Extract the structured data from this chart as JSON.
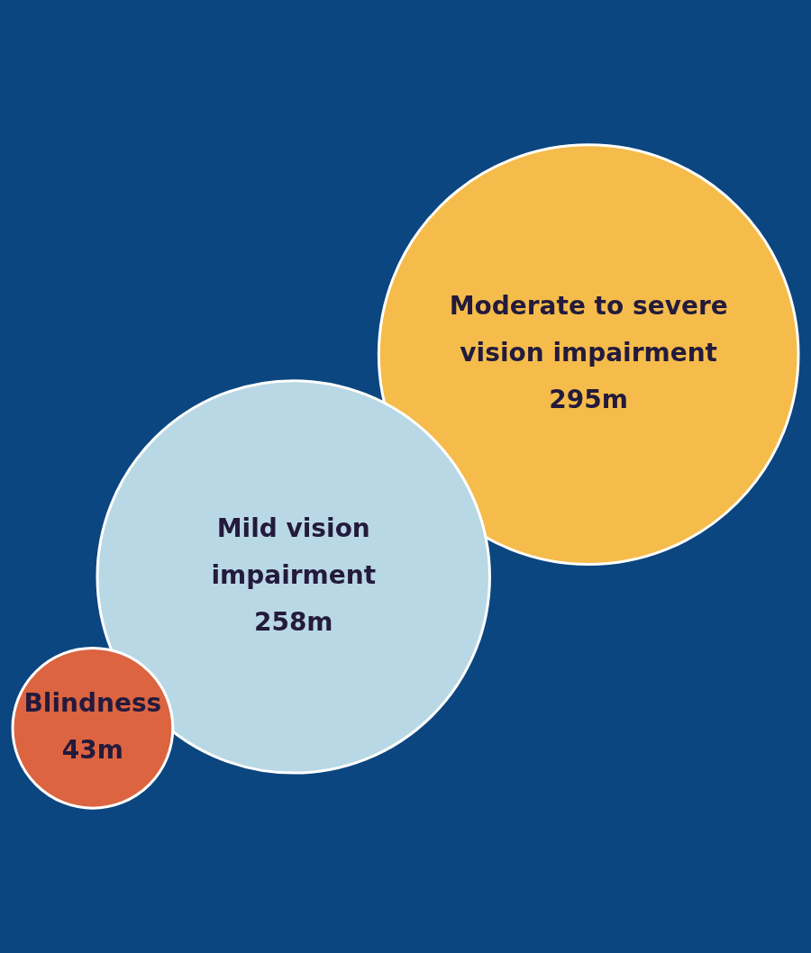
{
  "chart_data": {
    "type": "other",
    "categories": [
      "Moderate to severe vision impairment",
      "Mild vision impairment",
      "Blindness"
    ],
    "values": [
      295,
      258,
      43
    ],
    "value_labels": [
      "295m",
      "258m",
      "43m"
    ],
    "colors": [
      "#f5bc4b",
      "#b9d8e5",
      "#dc6441"
    ]
  }
}
